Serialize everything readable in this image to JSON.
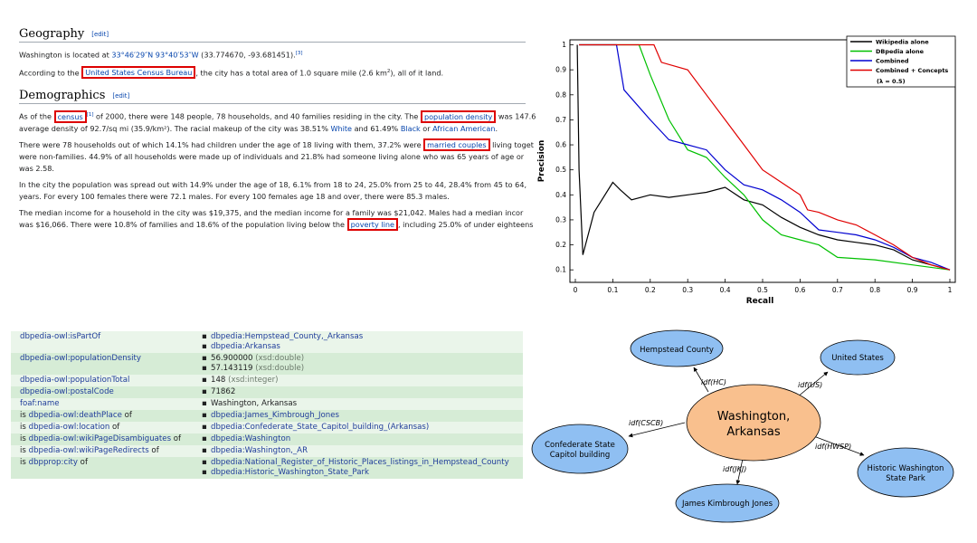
{
  "wiki": {
    "geography": {
      "heading": "Geography",
      "edit": "[edit]",
      "p1_a": "Washington is located at ",
      "p1_coords": "33°46′29″N 93°40′53″W",
      "p1_b": " (33.774670, -93.681451).",
      "p1_ref": "[3]",
      "p2_a": "According to the ",
      "p2_link": "United States Census Bureau",
      "p2_b": ", the city has a total area of 1.0 square mile (2.6 km",
      "p2_sup": "2",
      "p2_c": "), all of it land."
    },
    "demographics": {
      "heading": "Demographics",
      "edit": "[edit]",
      "p1_a": "As of the ",
      "p1_link1": "census",
      "p1_ref": "[1]",
      "p1_b": " of 2000, there were 148 people, 78 households, and 40 families residing in the city. The ",
      "p1_link2": "population density",
      "p1_c": " was 147.6",
      "p1_d": "average density of 92.7/sq mi (35.9/km²). The racial makeup of the city was 38.51% ",
      "p1_white": "White",
      "p1_e": " and 61.49% ",
      "p1_black": "Black",
      "p1_f": " or ",
      "p1_aa": "African American",
      "p1_g": ".",
      "p2_a": "There were 78 households out of which 14.1% had children under the age of 18 living with them, 37.2% were ",
      "p2_link": "married couples",
      "p2_b": " living toget",
      "p2_c": "were non-families. 44.9% of all households were made up of individuals and 21.8% had someone living alone who was 65 years of age or",
      "p2_d": "was 2.58.",
      "p3_a": "In the city the population was spread out with 14.9% under the age of 18, 6.1% from 18 to 24, 25.0% from 25 to 44, 28.4% from 45 to 64,",
      "p3_b": "years. For every 100 females there were 72.1 males. For every 100 females age 18 and over, there were 85.3 males.",
      "p4_a": "The median income for a household in the city was $19,375, and the median income for a family was $21,042. Males had a median incor",
      "p4_b": "was $16,066. There were 10.8% of families and 18.6% of the population living below the ",
      "p4_link": "poverty line",
      "p4_c": ", including 25.0% of under eighteens"
    }
  },
  "chart_data": {
    "type": "line",
    "xlabel": "Recall",
    "ylabel": "Precision",
    "xlim": [
      0,
      1
    ],
    "ylim": [
      0.05,
      1.02
    ],
    "xticks": [
      "0",
      "0.1",
      "0.2",
      "0.3",
      "0.4",
      "0.5",
      "0.6",
      "0.7",
      "0.8",
      "0.9",
      "1"
    ],
    "yticks": [
      "0.1",
      "0.2",
      "0.3",
      "0.4",
      "0.5",
      "0.6",
      "0.7",
      "0.8",
      "0.9",
      "1"
    ],
    "legend_position": "top-right",
    "legend_extra": "(λ = 0.5)",
    "series": [
      {
        "name": "Wikipedia alone",
        "color": "#000000",
        "x": [
          0.005,
          0.01,
          0.02,
          0.05,
          0.1,
          0.12,
          0.15,
          0.2,
          0.25,
          0.3,
          0.35,
          0.4,
          0.45,
          0.5,
          0.55,
          0.6,
          0.65,
          0.7,
          0.75,
          0.8,
          0.85,
          0.9,
          0.95,
          1.0
        ],
        "y": [
          1.0,
          0.5,
          0.16,
          0.33,
          0.45,
          0.42,
          0.38,
          0.4,
          0.39,
          0.4,
          0.41,
          0.43,
          0.38,
          0.36,
          0.31,
          0.27,
          0.24,
          0.22,
          0.21,
          0.2,
          0.18,
          0.14,
          0.12,
          0.1
        ]
      },
      {
        "name": "DBpedia alone",
        "color": "#00c000",
        "x": [
          0.01,
          0.17,
          0.2,
          0.25,
          0.3,
          0.35,
          0.4,
          0.45,
          0.5,
          0.55,
          0.6,
          0.65,
          0.7,
          0.8,
          0.9,
          1.0
        ],
        "y": [
          1.0,
          1.0,
          0.88,
          0.7,
          0.58,
          0.55,
          0.47,
          0.4,
          0.3,
          0.24,
          0.22,
          0.2,
          0.15,
          0.14,
          0.12,
          0.1
        ]
      },
      {
        "name": "Combined",
        "color": "#0000d0",
        "x": [
          0.01,
          0.11,
          0.13,
          0.2,
          0.25,
          0.3,
          0.35,
          0.4,
          0.45,
          0.5,
          0.55,
          0.6,
          0.65,
          0.7,
          0.75,
          0.8,
          0.85,
          0.9,
          0.95,
          1.0
        ],
        "y": [
          1.0,
          1.0,
          0.82,
          0.7,
          0.62,
          0.6,
          0.58,
          0.5,
          0.44,
          0.42,
          0.38,
          0.33,
          0.26,
          0.25,
          0.24,
          0.22,
          0.19,
          0.15,
          0.13,
          0.1
        ]
      },
      {
        "name": "Combined + Concepts",
        "color": "#e00000",
        "x": [
          0.01,
          0.21,
          0.23,
          0.3,
          0.35,
          0.4,
          0.45,
          0.5,
          0.55,
          0.6,
          0.62,
          0.65,
          0.7,
          0.75,
          0.8,
          0.85,
          0.9,
          0.95,
          1.0
        ],
        "y": [
          1.0,
          1.0,
          0.93,
          0.9,
          0.8,
          0.7,
          0.6,
          0.5,
          0.45,
          0.4,
          0.34,
          0.33,
          0.3,
          0.28,
          0.24,
          0.2,
          0.15,
          0.12,
          0.1
        ]
      }
    ]
  },
  "dbpedia": {
    "rows": [
      {
        "pre": "",
        "prop": "dbpedia-owl:isPartOf",
        "post": "",
        "values": [
          {
            "text": "dbpedia:Hempstead_County,_Arkansas",
            "type": ""
          },
          {
            "text": "dbpedia:Arkansas",
            "type": ""
          }
        ]
      },
      {
        "pre": "",
        "prop": "dbpedia-owl:populationDensity",
        "post": "",
        "values": [
          {
            "text": "56.900000",
            "type": "(xsd:double)"
          },
          {
            "text": "57.143119",
            "type": "(xsd:double)"
          }
        ]
      },
      {
        "pre": "",
        "prop": "dbpedia-owl:populationTotal",
        "post": "",
        "values": [
          {
            "text": "148",
            "type": "(xsd:integer)"
          }
        ]
      },
      {
        "pre": "",
        "prop": "dbpedia-owl:postalCode",
        "post": "",
        "values": [
          {
            "text": "71862",
            "type": ""
          }
        ]
      },
      {
        "pre": "",
        "prop": "foaf:name",
        "post": "",
        "values": [
          {
            "text": "Washington, Arkansas",
            "type": ""
          }
        ]
      },
      {
        "pre": "is ",
        "prop": "dbpedia-owl:deathPlace",
        "post": " of",
        "values": [
          {
            "text": "dbpedia:James_Kimbrough_Jones",
            "type": ""
          }
        ]
      },
      {
        "pre": "is ",
        "prop": "dbpedia-owl:location",
        "post": " of",
        "values": [
          {
            "text": "dbpedia:Confederate_State_Capitol_building_(Arkansas)",
            "type": ""
          }
        ]
      },
      {
        "pre": "is ",
        "prop": "dbpedia-owl:wikiPageDisambiguates",
        "post": " of",
        "values": [
          {
            "text": "dbpedia:Washington",
            "type": ""
          }
        ]
      },
      {
        "pre": "is ",
        "prop": "dbpedia-owl:wikiPageRedirects",
        "post": " of",
        "values": [
          {
            "text": "dbpedia:Washington,_AR",
            "type": ""
          }
        ]
      },
      {
        "pre": "is ",
        "prop": "dbpprop:city",
        "post": " of",
        "values": [
          {
            "text": "dbpedia:National_Register_of_Historic_Places_listings_in_Hempstead_County",
            "type": ""
          },
          {
            "text": "dbpedia:Historic_Washington_State_Park",
            "type": ""
          }
        ]
      }
    ]
  },
  "graph": {
    "center_line1": "Washington,",
    "center_line2": "Arkansas",
    "center_color": "#f9c08e",
    "node_color": "#8fbff2",
    "nodes": [
      {
        "line1": "Hempstead County",
        "line2": "",
        "edge": "idf(HC)"
      },
      {
        "line1": "United States",
        "line2": "",
        "edge": "idf(US)"
      },
      {
        "line1": "Confederate State",
        "line2": "Capitol building",
        "edge": "idf(CSCB)"
      },
      {
        "line1": "Historic Washington",
        "line2": "State Park",
        "edge": "idf(HWSP)"
      },
      {
        "line1": "James Kimbrough Jones",
        "line2": "",
        "edge": "idf(JKJ)"
      }
    ]
  }
}
